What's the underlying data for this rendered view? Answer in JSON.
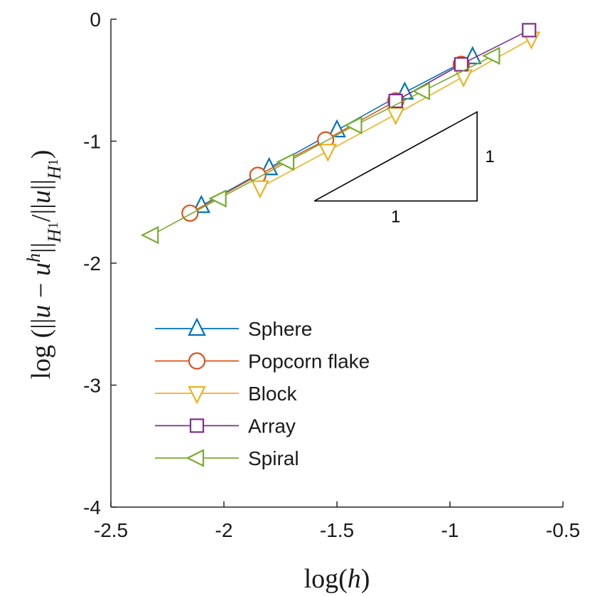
{
  "chart_data": {
    "type": "line",
    "xlabel": "log(h)",
    "ylabel": "log(||u - u^h||_{H^1} / ||u||_{H^1})",
    "xlim": [
      -2.5,
      -0.5
    ],
    "ylim": [
      -4,
      0
    ],
    "xticks": [
      "-2.5",
      "-2",
      "-1.5",
      "-1",
      "-0.5"
    ],
    "yticks": [
      "-4",
      "-3",
      "-2",
      "-1",
      "0"
    ],
    "grid": false,
    "legend_position": "lower-left",
    "series": [
      {
        "name": "Sphere",
        "marker": "triangle-up",
        "color": "#0072bd",
        "x": [
          -2.1,
          -1.8,
          -1.5,
          -1.2,
          -0.9
        ],
        "y": [
          -1.53,
          -1.22,
          -0.91,
          -0.6,
          -0.31
        ]
      },
      {
        "name": "Popcorn flake",
        "marker": "circle",
        "color": "#d95319",
        "x": [
          -2.15,
          -1.85,
          -1.55,
          -1.24,
          -0.95
        ],
        "y": [
          -1.59,
          -1.28,
          -0.99,
          -0.67,
          -0.37
        ]
      },
      {
        "name": "Block",
        "marker": "triangle-down",
        "color": "#edb120",
        "x": [
          -1.84,
          -1.54,
          -1.24,
          -0.94,
          -0.64
        ],
        "y": [
          -1.38,
          -1.08,
          -0.78,
          -0.47,
          -0.16
        ]
      },
      {
        "name": "Array",
        "marker": "square",
        "color": "#7e2f8e",
        "x": [
          -1.24,
          -0.95,
          -0.65
        ],
        "y": [
          -0.67,
          -0.37,
          -0.09
        ]
      },
      {
        "name": "Spiral",
        "marker": "triangle-left",
        "color": "#77ac30",
        "x": [
          -2.32,
          -2.02,
          -1.72,
          -1.42,
          -1.12,
          -0.81
        ],
        "y": [
          -1.77,
          -1.47,
          -1.17,
          -0.87,
          -0.59,
          -0.3
        ]
      }
    ],
    "slope_triangle": {
      "x": [
        -1.6,
        -0.88
      ],
      "y": [
        -1.49,
        -0.76
      ],
      "horizontal_label": "1",
      "vertical_label": "1"
    }
  }
}
